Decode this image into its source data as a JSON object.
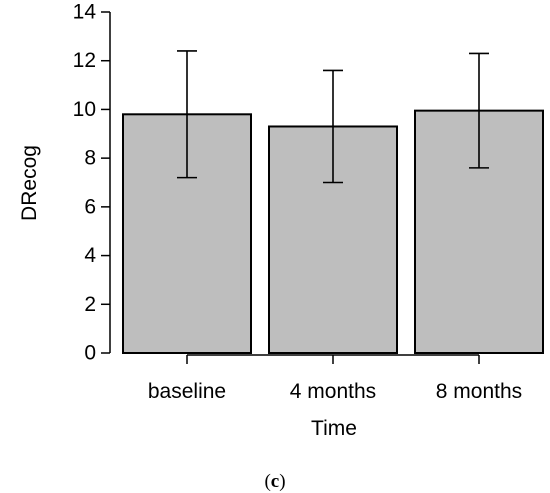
{
  "chart_data": {
    "type": "bar",
    "categories": [
      "baseline",
      "4 months",
      "8 months"
    ],
    "values": [
      9.8,
      9.3,
      9.95
    ],
    "error_bars": {
      "lower": [
        7.2,
        7.0,
        7.6
      ],
      "upper": [
        12.4,
        11.6,
        12.3
      ]
    },
    "title": "",
    "xlabel": "Time",
    "ylabel": "DRecog",
    "ylim": [
      0,
      14
    ],
    "yticks": [
      0,
      2,
      4,
      6,
      8,
      10,
      12,
      14
    ],
    "grid": false,
    "legend": "none",
    "colors": {
      "bar_fill": "#bebebe",
      "bar_stroke": "#000000",
      "axis": "#000000"
    }
  },
  "caption": {
    "open": "(",
    "letter": "c",
    "close": ")"
  }
}
